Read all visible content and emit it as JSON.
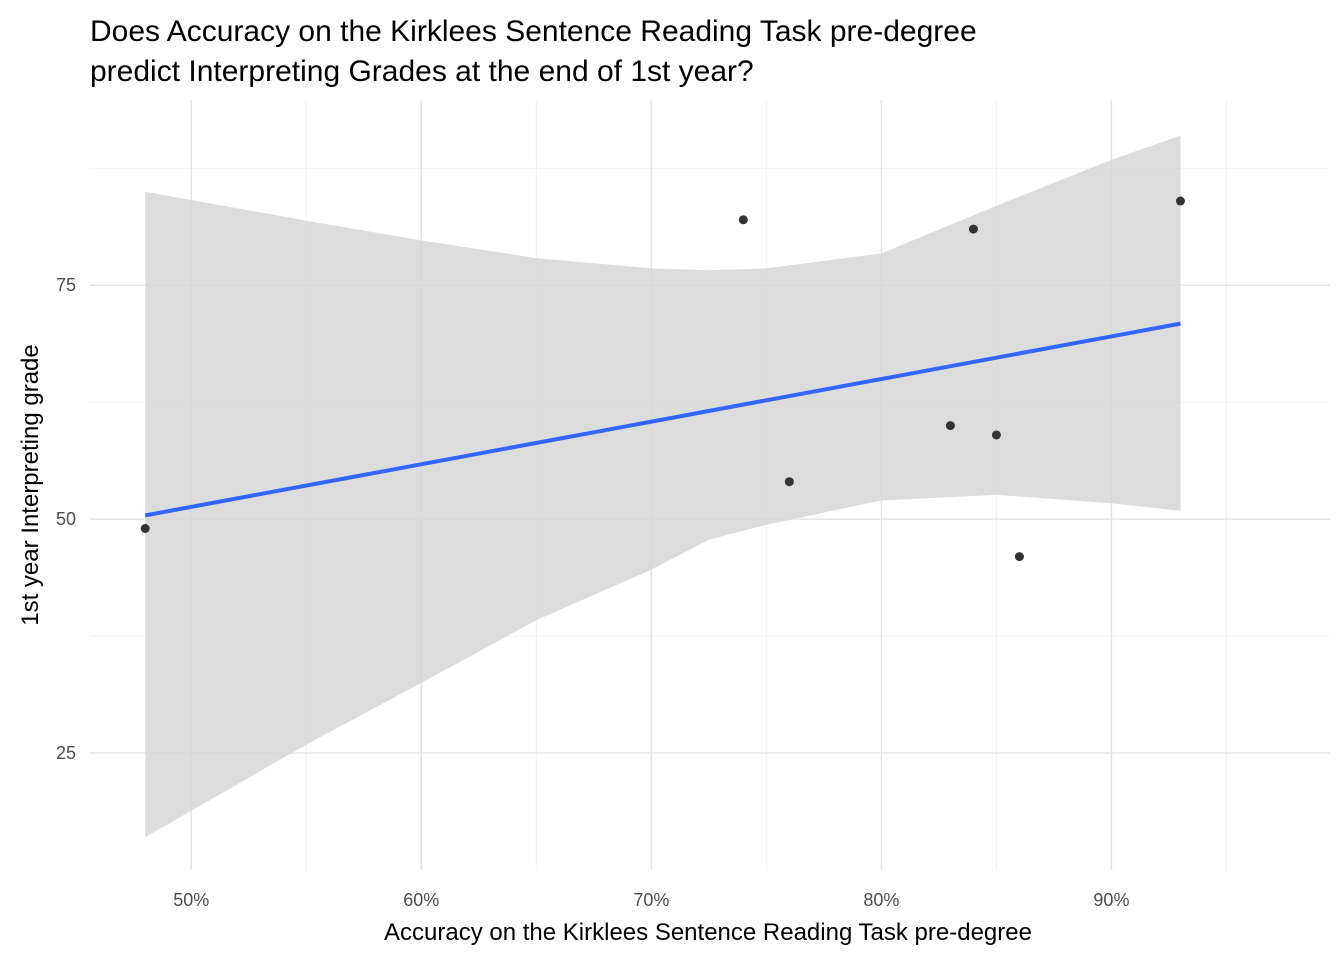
{
  "chart_data": {
    "type": "scatter",
    "title": "Does Accuracy on the Kirklees Sentence Reading Task pre-degree\npredict Interpreting Grades at the end of 1st year?",
    "x_label": "Accuracy on the Kirklees Sentence Reading Task pre-degree",
    "y_label": "1st year Interpreting grade",
    "series": [
      {
        "color": "#333333",
        "x": [
          48,
          74,
          76,
          83,
          84,
          85,
          86,
          93
        ],
        "values": [
          49,
          82,
          54,
          60,
          81,
          59,
          46,
          84
        ]
      }
    ],
    "fit": {
      "color": "#3366ff",
      "x": [
        48,
        93
      ],
      "values": [
        50.4,
        70.9
      ]
    },
    "band": {
      "color": "#d6d6d6",
      "x": [
        48,
        55,
        60,
        65,
        70,
        72.5,
        75,
        80,
        85,
        90,
        93
      ],
      "lower": [
        16.0,
        25.9,
        32.5,
        39.2,
        44.6,
        47.8,
        49.4,
        52.0,
        52.6,
        51.7,
        50.9
      ],
      "upper": [
        85.0,
        81.9,
        79.8,
        77.9,
        76.8,
        76.6,
        76.8,
        78.4,
        83.5,
        88.4,
        91.0
      ]
    },
    "xlim": [
      45.6,
      99.5
    ],
    "ylim": [
      12.5,
      94.8
    ],
    "xticks": [
      {
        "value": 50,
        "label": "50%"
      },
      {
        "value": 60,
        "label": "60%"
      },
      {
        "value": 70,
        "label": "70%"
      },
      {
        "value": 80,
        "label": "80%"
      },
      {
        "value": 90,
        "label": "90%"
      }
    ],
    "yticks": [
      25,
      50,
      75
    ],
    "xminorticks": [
      55,
      65,
      75,
      85,
      95
    ],
    "yminorticks": [
      37.5,
      62.5,
      87.5
    ],
    "grid": true
  }
}
